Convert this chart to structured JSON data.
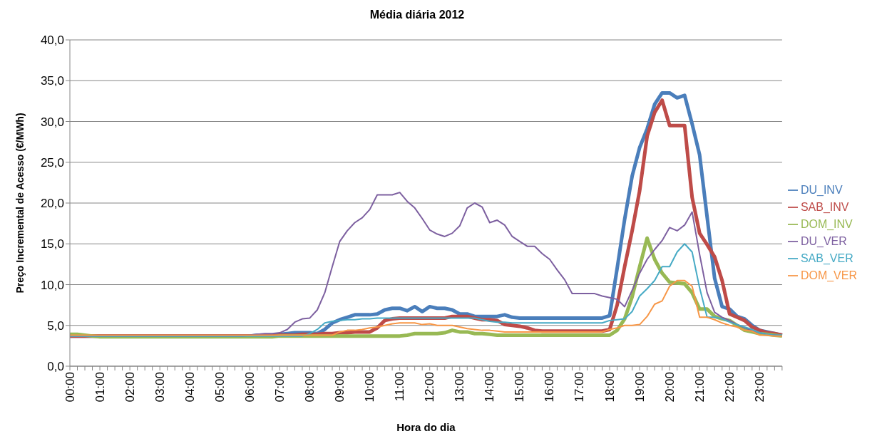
{
  "chart_data": {
    "type": "line",
    "title": "Média diária 2012",
    "xlabel": "Hora do dia",
    "ylabel": "Preço Incremental de Acesso (€/MWh)",
    "categories": [
      "00:00",
      null,
      null,
      null,
      "01:00",
      null,
      null,
      null,
      "02:00",
      null,
      null,
      null,
      "03:00",
      null,
      null,
      null,
      "04:00",
      null,
      null,
      null,
      "05:00",
      null,
      null,
      null,
      "06:00",
      null,
      null,
      null,
      "07:00",
      null,
      null,
      null,
      "08:00",
      null,
      null,
      null,
      "09:00",
      null,
      null,
      null,
      "10:00",
      null,
      null,
      null,
      "11:00",
      null,
      null,
      null,
      "12:00",
      null,
      null,
      null,
      "13:00",
      null,
      null,
      null,
      "14:00",
      null,
      null,
      null,
      "15:00",
      null,
      null,
      null,
      "16:00",
      null,
      null,
      null,
      "17:00",
      null,
      null,
      null,
      "18:00",
      null,
      null,
      null,
      "19:00",
      null,
      null,
      null,
      "20:00",
      null,
      null,
      null,
      "21:00",
      null,
      null,
      null,
      "22:00",
      null,
      null,
      null,
      "23:00",
      null,
      null,
      null
    ],
    "ylim": [
      0,
      40
    ],
    "yticks": [
      {
        "value": 0,
        "label": "0,0"
      },
      {
        "value": 5,
        "label": "5,0"
      },
      {
        "value": 10,
        "label": "10,0"
      },
      {
        "value": 15,
        "label": "15,0"
      },
      {
        "value": 20,
        "label": "20,0"
      },
      {
        "value": 25,
        "label": "25,0"
      },
      {
        "value": 30,
        "label": "30,0"
      },
      {
        "value": 35,
        "label": "35,0"
      },
      {
        "value": 40,
        "label": "40,0"
      }
    ],
    "grid": "y",
    "legend": "right",
    "series": [
      {
        "name": "DU_INV",
        "color": "#4a7ebb",
        "values": [
          3.7,
          3.7,
          3.7,
          3.7,
          3.7,
          3.7,
          3.7,
          3.7,
          3.7,
          3.7,
          3.7,
          3.7,
          3.7,
          3.7,
          3.7,
          3.7,
          3.7,
          3.7,
          3.7,
          3.7,
          3.7,
          3.7,
          3.7,
          3.7,
          3.7,
          3.8,
          3.8,
          3.8,
          3.9,
          4.0,
          4.1,
          4.1,
          4.1,
          4.0,
          4.5,
          5.3,
          5.7,
          6.0,
          6.3,
          6.3,
          6.3,
          6.4,
          6.9,
          7.1,
          7.1,
          6.8,
          7.3,
          6.7,
          7.3,
          7.1,
          7.1,
          6.9,
          6.4,
          6.4,
          6.1,
          6.1,
          6.1,
          6.1,
          6.3,
          6.0,
          5.9,
          5.9,
          5.9,
          5.9,
          5.9,
          5.9,
          5.9,
          5.9,
          5.9,
          5.9,
          5.9,
          5.9,
          6.2,
          12.0,
          18.0,
          23.3,
          26.8,
          29.1,
          32.1,
          33.5,
          33.5,
          32.9,
          33.2,
          29.7,
          25.9,
          18.3,
          10.8,
          7.3,
          7.0,
          6.1,
          5.8,
          5.0,
          4.4,
          4.2,
          4.0,
          3.8
        ]
      },
      {
        "name": "SAB_INV",
        "color": "#be4b48",
        "values": [
          3.7,
          3.7,
          3.7,
          3.7,
          3.7,
          3.7,
          3.7,
          3.7,
          3.7,
          3.7,
          3.7,
          3.7,
          3.7,
          3.7,
          3.7,
          3.7,
          3.7,
          3.7,
          3.7,
          3.7,
          3.7,
          3.7,
          3.7,
          3.7,
          3.7,
          3.7,
          3.7,
          3.7,
          3.8,
          3.8,
          3.8,
          3.9,
          3.9,
          3.9,
          4.0,
          4.0,
          4.1,
          4.1,
          4.2,
          4.2,
          4.2,
          4.7,
          5.6,
          5.8,
          5.9,
          5.9,
          5.9,
          5.9,
          5.9,
          5.9,
          5.9,
          6.1,
          6.1,
          6.1,
          5.9,
          5.7,
          5.7,
          5.6,
          5.1,
          5.0,
          4.9,
          4.7,
          4.4,
          4.3,
          4.3,
          4.3,
          4.3,
          4.3,
          4.3,
          4.3,
          4.3,
          4.3,
          4.5,
          7.5,
          12.2,
          16.6,
          21.5,
          28.2,
          31.1,
          32.6,
          29.5,
          29.5,
          29.5,
          20.7,
          16.3,
          14.9,
          13.4,
          10.5,
          6.4,
          6.0,
          5.6,
          4.8,
          4.4,
          4.1,
          4.0,
          3.8
        ]
      },
      {
        "name": "DOM_INV",
        "color": "#98b954",
        "values": [
          3.9,
          3.9,
          3.8,
          3.7,
          3.6,
          3.6,
          3.6,
          3.6,
          3.6,
          3.6,
          3.6,
          3.6,
          3.6,
          3.6,
          3.6,
          3.6,
          3.6,
          3.6,
          3.6,
          3.6,
          3.6,
          3.6,
          3.6,
          3.6,
          3.6,
          3.6,
          3.6,
          3.6,
          3.7,
          3.7,
          3.7,
          3.7,
          3.7,
          3.7,
          3.7,
          3.7,
          3.7,
          3.7,
          3.7,
          3.7,
          3.7,
          3.7,
          3.7,
          3.7,
          3.7,
          3.8,
          4.0,
          4.0,
          4.0,
          4.0,
          4.1,
          4.4,
          4.2,
          4.2,
          4.0,
          4.0,
          3.9,
          3.8,
          3.8,
          3.8,
          3.8,
          3.8,
          3.8,
          3.8,
          3.8,
          3.8,
          3.8,
          3.8,
          3.8,
          3.8,
          3.8,
          3.8,
          3.8,
          4.4,
          5.8,
          8.5,
          12.2,
          15.7,
          13.1,
          11.4,
          10.3,
          10.2,
          10.1,
          9.0,
          7.0,
          7.0,
          6.1,
          5.8,
          5.6,
          5.0,
          4.4,
          4.2,
          4.0,
          3.9,
          3.8,
          3.7
        ]
      },
      {
        "name": "DU_VER",
        "color": "#7d60a0",
        "values": [
          3.7,
          3.7,
          3.7,
          3.7,
          3.7,
          3.7,
          3.7,
          3.7,
          3.7,
          3.7,
          3.7,
          3.7,
          3.7,
          3.7,
          3.7,
          3.7,
          3.7,
          3.7,
          3.7,
          3.7,
          3.7,
          3.7,
          3.7,
          3.7,
          3.8,
          3.9,
          4.0,
          4.0,
          4.1,
          4.5,
          5.4,
          5.8,
          5.9,
          6.9,
          9.0,
          12.2,
          15.3,
          16.6,
          17.6,
          18.2,
          19.2,
          21.0,
          21.0,
          21.0,
          21.3,
          20.2,
          19.4,
          18.1,
          16.7,
          16.2,
          15.9,
          16.3,
          17.2,
          19.4,
          20.0,
          19.5,
          17.6,
          17.9,
          17.3,
          15.9,
          15.3,
          14.7,
          14.7,
          13.8,
          13.1,
          11.8,
          10.6,
          8.9,
          8.9,
          8.9,
          8.9,
          8.6,
          8.4,
          8.2,
          7.3,
          9.3,
          11.4,
          13.1,
          14.3,
          15.4,
          17.0,
          16.6,
          17.3,
          18.9,
          13.7,
          9.0,
          6.6,
          6.0,
          5.6,
          5.1,
          4.7,
          4.4,
          4.1,
          3.9,
          3.8,
          3.8
        ]
      },
      {
        "name": "SAB_VER",
        "color": "#46aac5",
        "values": [
          3.7,
          3.7,
          3.7,
          3.7,
          3.7,
          3.7,
          3.7,
          3.7,
          3.7,
          3.7,
          3.7,
          3.7,
          3.7,
          3.7,
          3.7,
          3.7,
          3.7,
          3.7,
          3.7,
          3.7,
          3.7,
          3.7,
          3.7,
          3.7,
          3.7,
          3.7,
          3.7,
          3.7,
          3.7,
          3.7,
          3.7,
          3.7,
          4.0,
          4.5,
          5.3,
          5.5,
          5.6,
          5.7,
          5.7,
          5.8,
          5.8,
          5.9,
          5.9,
          5.9,
          5.9,
          5.9,
          5.9,
          5.9,
          5.9,
          5.9,
          5.9,
          5.9,
          5.9,
          5.9,
          5.9,
          5.7,
          5.5,
          5.4,
          5.4,
          5.3,
          5.3,
          5.3,
          5.3,
          5.3,
          5.3,
          5.3,
          5.3,
          5.3,
          5.3,
          5.3,
          5.3,
          5.3,
          5.6,
          5.7,
          5.8,
          6.7,
          8.6,
          9.5,
          10.5,
          12.2,
          12.2,
          14.0,
          15.0,
          14.0,
          9.6,
          6.0,
          6.0,
          5.8,
          5.4,
          5.1,
          4.8,
          4.5,
          4.1,
          3.9,
          3.8,
          3.8
        ]
      },
      {
        "name": "DOM_VER",
        "color": "#f79646",
        "values": [
          3.8,
          3.8,
          3.8,
          3.8,
          3.8,
          3.8,
          3.8,
          3.8,
          3.8,
          3.8,
          3.8,
          3.8,
          3.8,
          3.8,
          3.8,
          3.8,
          3.8,
          3.8,
          3.8,
          3.8,
          3.8,
          3.8,
          3.8,
          3.8,
          3.8,
          3.8,
          3.8,
          3.8,
          3.8,
          3.8,
          3.8,
          3.8,
          3.8,
          3.8,
          3.8,
          3.8,
          4.2,
          4.4,
          4.4,
          4.5,
          4.7,
          4.8,
          5.0,
          5.2,
          5.3,
          5.3,
          5.3,
          5.1,
          5.2,
          5.0,
          5.0,
          5.0,
          4.8,
          4.6,
          4.5,
          4.4,
          4.4,
          4.3,
          4.2,
          4.2,
          4.2,
          4.2,
          4.2,
          4.2,
          4.2,
          4.2,
          4.2,
          4.2,
          4.2,
          4.2,
          4.2,
          4.2,
          4.5,
          4.7,
          5.0,
          5.0,
          5.1,
          6.1,
          7.6,
          8.0,
          9.8,
          10.5,
          10.5,
          9.8,
          6.0,
          6.0,
          5.7,
          5.3,
          5.0,
          4.8,
          4.4,
          4.3,
          3.8,
          3.8,
          3.7,
          3.7
        ]
      }
    ]
  }
}
